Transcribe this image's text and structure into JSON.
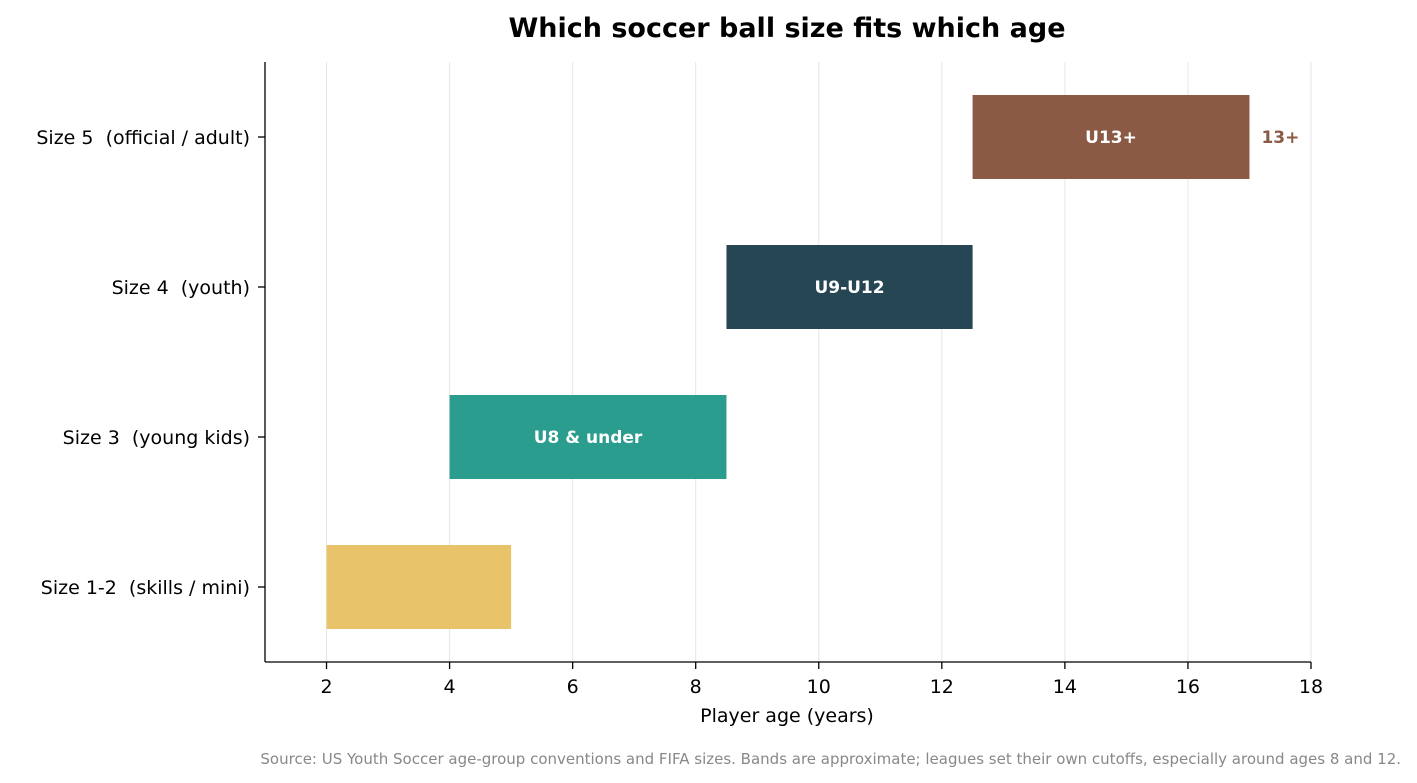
{
  "chart_data": {
    "type": "bar",
    "orientation": "horizontal",
    "title": "Which soccer ball size fits which age",
    "xlabel": "Player age (years)",
    "ylabel": "",
    "xlim": [
      1,
      18
    ],
    "xticks": [
      2,
      4,
      6,
      8,
      10,
      12,
      14,
      16,
      18
    ],
    "grid": "vertical",
    "categories": [
      "Size 1-2  (skills / mini)",
      "Size 3  (young kids)",
      "Size 4  (youth)",
      "Size 5  (official / adult)"
    ],
    "ranges": [
      {
        "category": "Size 1-2  (skills / mini)",
        "start": 2,
        "end": 5,
        "color": "#e8c36a",
        "label": ""
      },
      {
        "category": "Size 3  (young kids)",
        "start": 4,
        "end": 8.5,
        "color": "#2a9d8f",
        "label": "U8 & under"
      },
      {
        "category": "Size 4  (youth)",
        "start": 8.5,
        "end": 12.5,
        "color": "#264653",
        "label": "U9-U12"
      },
      {
        "category": "Size 5  (official / adult)",
        "start": 12.5,
        "end": 17,
        "color": "#8a5a44",
        "label": "U13+",
        "outside_label": "13+"
      }
    ],
    "source": "Source: US Youth Soccer age-group conventions and FIFA sizes. Bands are approximate; leagues set their own cutoffs, especially around ages 8 and 12."
  }
}
